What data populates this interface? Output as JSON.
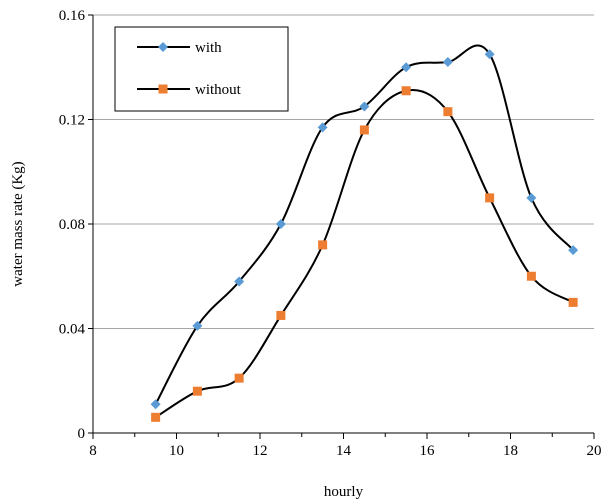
{
  "chart_data": {
    "type": "line",
    "title": "",
    "xlabel": "hourly",
    "ylabel": "water mass rate (Kg)",
    "xlim": [
      8,
      20
    ],
    "ylim": [
      0,
      0.16
    ],
    "x_ticks": [
      8,
      10,
      12,
      14,
      16,
      18,
      20
    ],
    "y_ticks": [
      0,
      0.04,
      0.08,
      0.12,
      0.16
    ],
    "x_tick_labels": [
      "8",
      "10",
      "12",
      "14",
      "16",
      "18",
      "20"
    ],
    "y_tick_labels": [
      "0",
      "0.04",
      "0.08",
      "0.12",
      "0.16"
    ],
    "grid": "horizontal",
    "smooth": true,
    "legend_position": "top-left",
    "series": [
      {
        "name": "with",
        "marker": "diamond",
        "color": "#5B9BD5",
        "line_color": "#000000",
        "x": [
          9.5,
          10.5,
          11.5,
          12.5,
          13.5,
          14.5,
          15.5,
          16.5,
          17.5,
          18.5,
          19.5
        ],
        "y": [
          0.011,
          0.041,
          0.058,
          0.08,
          0.117,
          0.125,
          0.14,
          0.142,
          0.145,
          0.09,
          0.07
        ]
      },
      {
        "name": "without",
        "marker": "square",
        "color": "#ED7D31",
        "line_color": "#000000",
        "x": [
          9.5,
          10.5,
          11.5,
          12.5,
          13.5,
          14.5,
          15.5,
          16.5,
          17.5,
          18.5,
          19.5
        ],
        "y": [
          0.006,
          0.016,
          0.021,
          0.045,
          0.072,
          0.116,
          0.131,
          0.123,
          0.09,
          0.06,
          0.05
        ]
      }
    ]
  }
}
